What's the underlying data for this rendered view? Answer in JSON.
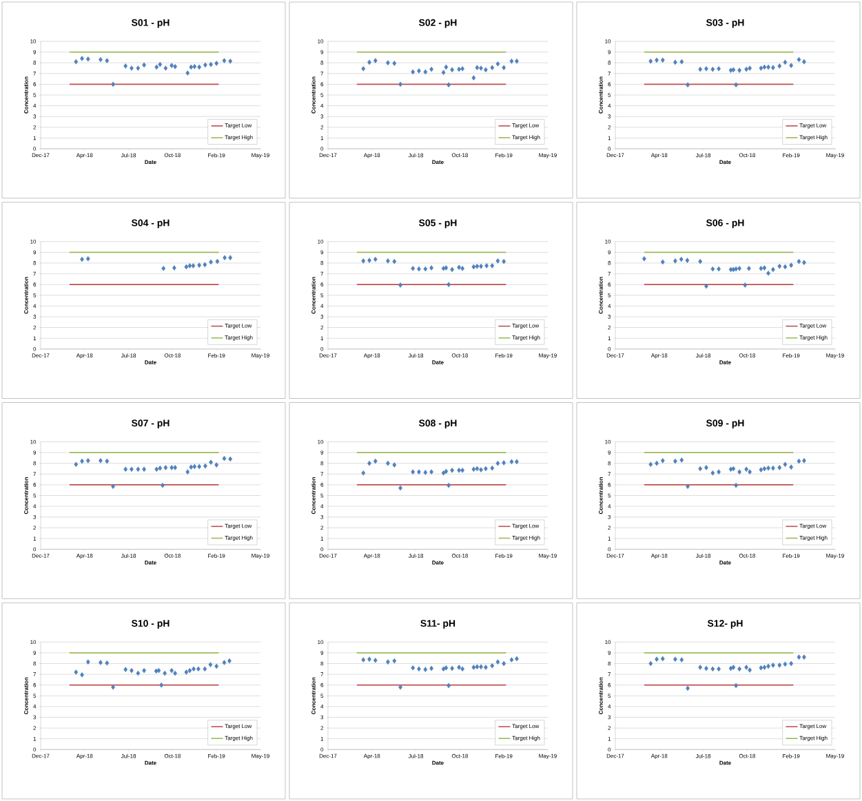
{
  "chart_data": [
    {
      "type": "scatter",
      "title": "S01 - pH",
      "xlabel": "Date",
      "ylabel": "Concentration",
      "grid": "y",
      "legend": "bottom right",
      "xlim": [
        "2017-12-20",
        "2019-05-14"
      ],
      "xticks": [
        {
          "value": "2017-12-20",
          "label": "Dec-17"
        },
        {
          "value": "2018-04-01",
          "label": "Apr-18"
        },
        {
          "value": "2018-07-12",
          "label": "Jul-18"
        },
        {
          "value": "2018-10-22",
          "label": "Oct-18"
        },
        {
          "value": "2019-02-01",
          "label": "Feb-19"
        },
        {
          "value": "2019-05-14",
          "label": "May-19"
        }
      ],
      "ylim": [
        0,
        10
      ],
      "yticks": [
        0,
        1,
        2,
        3,
        4,
        5,
        6,
        7,
        8,
        9,
        10
      ],
      "series": [
        {
          "marker": "diamond",
          "color": "#4f81bd",
          "x": [
            "2018-03-12",
            "2018-03-26",
            "2018-04-09",
            "2018-05-08",
            "2018-05-23",
            "2018-06-06",
            "2018-07-05",
            "2018-07-19",
            "2018-08-03",
            "2018-08-17",
            "2018-09-15",
            "2018-09-23",
            "2018-10-06",
            "2018-10-20",
            "2018-10-28",
            "2018-11-26",
            "2018-12-04",
            "2018-12-12",
            "2018-12-23",
            "2019-01-06",
            "2019-01-19",
            "2019-02-01",
            "2019-02-19",
            "2019-03-05"
          ],
          "values": [
            8.1,
            8.4,
            8.35,
            8.3,
            8.2,
            6.0,
            7.7,
            7.5,
            7.5,
            7.8,
            7.6,
            7.85,
            7.5,
            7.75,
            7.65,
            7.05,
            7.6,
            7.65,
            7.6,
            7.8,
            7.85,
            7.95,
            8.2,
            8.15
          ]
        },
        {
          "name": "Target Low",
          "type": "line",
          "color": "#c0504d",
          "x": [
            "2018-02-25",
            "2019-02-06"
          ],
          "values": [
            6,
            6
          ]
        },
        {
          "name": "Target High",
          "type": "line",
          "color": "#9bbb59",
          "x": [
            "2018-02-25",
            "2019-02-06"
          ],
          "values": [
            9,
            9
          ]
        }
      ]
    },
    {
      "type": "scatter",
      "title": "S02 - pH",
      "xlabel": "Date",
      "ylabel": "Concentration",
      "grid": "y",
      "legend": "bottom right",
      "xlim": [
        "2017-12-20",
        "2019-05-14"
      ],
      "xticks": [
        {
          "value": "2017-12-20",
          "label": "Dec-17"
        },
        {
          "value": "2018-04-01",
          "label": "Apr-18"
        },
        {
          "value": "2018-07-12",
          "label": "Jul-18"
        },
        {
          "value": "2018-10-22",
          "label": "Oct-18"
        },
        {
          "value": "2019-02-01",
          "label": "Feb-19"
        },
        {
          "value": "2019-05-14",
          "label": "May-19"
        }
      ],
      "ylim": [
        0,
        10
      ],
      "yticks": [
        0,
        1,
        2,
        3,
        4,
        5,
        6,
        7,
        8,
        9,
        10
      ],
      "series": [
        {
          "marker": "diamond",
          "color": "#4f81bd",
          "x": [
            "2018-03-12",
            "2018-03-26",
            "2018-04-09",
            "2018-05-08",
            "2018-05-23",
            "2018-06-06",
            "2018-07-05",
            "2018-07-19",
            "2018-08-03",
            "2018-08-17",
            "2018-09-14",
            "2018-09-20",
            "2018-09-26",
            "2018-10-04",
            "2018-10-20",
            "2018-10-28",
            "2018-11-23",
            "2018-12-01",
            "2018-12-10",
            "2018-12-21",
            "2019-01-05",
            "2019-01-18",
            "2019-02-01",
            "2019-02-19",
            "2019-03-03"
          ],
          "values": [
            7.45,
            8.05,
            8.2,
            8.0,
            7.95,
            6.0,
            7.15,
            7.25,
            7.15,
            7.4,
            7.1,
            7.6,
            5.95,
            7.35,
            7.4,
            7.45,
            6.6,
            7.55,
            7.5,
            7.35,
            7.55,
            7.9,
            7.55,
            8.15,
            8.15
          ]
        },
        {
          "name": "Target Low",
          "type": "line",
          "color": "#c0504d",
          "x": [
            "2018-02-25",
            "2019-02-06"
          ],
          "values": [
            6,
            6
          ]
        },
        {
          "name": "Target High",
          "type": "line",
          "color": "#9bbb59",
          "x": [
            "2018-02-25",
            "2019-02-06"
          ],
          "values": [
            9,
            9
          ]
        }
      ]
    },
    {
      "type": "scatter",
      "title": "S03 - pH",
      "xlabel": "Date",
      "ylabel": "Concentration",
      "grid": "y",
      "legend": "bottom right",
      "xlim": [
        "2017-12-20",
        "2019-05-14"
      ],
      "xticks": [
        {
          "value": "2017-12-20",
          "label": "Dec-17"
        },
        {
          "value": "2018-04-01",
          "label": "Apr-18"
        },
        {
          "value": "2018-07-12",
          "label": "Jul-18"
        },
        {
          "value": "2018-10-22",
          "label": "Oct-18"
        },
        {
          "value": "2019-02-01",
          "label": "Feb-19"
        },
        {
          "value": "2019-05-14",
          "label": "May-19"
        }
      ],
      "ylim": [
        0,
        10
      ],
      "yticks": [
        0,
        1,
        2,
        3,
        4,
        5,
        6,
        7,
        8,
        9,
        10
      ],
      "series": [
        {
          "marker": "diamond",
          "color": "#4f81bd",
          "x": [
            "2018-03-12",
            "2018-03-26",
            "2018-04-09",
            "2018-05-08",
            "2018-05-23",
            "2018-06-06",
            "2018-07-05",
            "2018-07-19",
            "2018-08-03",
            "2018-08-17",
            "2018-09-14",
            "2018-09-20",
            "2018-09-26",
            "2018-10-04",
            "2018-10-20",
            "2018-10-28",
            "2018-11-23",
            "2018-12-01",
            "2018-12-10",
            "2018-12-21",
            "2019-01-05",
            "2019-01-18",
            "2019-02-01",
            "2019-02-19",
            "2019-03-03"
          ],
          "values": [
            8.15,
            8.25,
            8.25,
            8.05,
            8.1,
            5.95,
            7.4,
            7.45,
            7.4,
            7.45,
            7.3,
            7.35,
            5.95,
            7.3,
            7.4,
            7.5,
            7.5,
            7.6,
            7.6,
            7.55,
            7.7,
            8.05,
            7.75,
            8.3,
            8.1
          ]
        },
        {
          "name": "Target Low",
          "type": "line",
          "color": "#c0504d",
          "x": [
            "2018-02-25",
            "2019-02-06"
          ],
          "values": [
            6,
            6
          ]
        },
        {
          "name": "Target High",
          "type": "line",
          "color": "#9bbb59",
          "x": [
            "2018-02-25",
            "2019-02-06"
          ],
          "values": [
            9,
            9
          ]
        }
      ]
    },
    {
      "type": "scatter",
      "title": "S04 - pH",
      "xlabel": "Date",
      "ylabel": "Concentration",
      "grid": "y",
      "legend": "bottom right",
      "xlim": [
        "2017-12-20",
        "2019-05-14"
      ],
      "xticks": [
        {
          "value": "2017-12-20",
          "label": "Dec-17"
        },
        {
          "value": "2018-04-01",
          "label": "Apr-18"
        },
        {
          "value": "2018-07-12",
          "label": "Jul-18"
        },
        {
          "value": "2018-10-22",
          "label": "Oct-18"
        },
        {
          "value": "2019-02-01",
          "label": "Feb-19"
        },
        {
          "value": "2019-05-14",
          "label": "May-19"
        }
      ],
      "ylim": [
        0,
        10
      ],
      "yticks": [
        0,
        1,
        2,
        3,
        4,
        5,
        6,
        7,
        8,
        9,
        10
      ],
      "series": [
        {
          "marker": "diamond",
          "color": "#4f81bd",
          "x": [
            "2018-03-26",
            "2018-04-09",
            "2018-10-01",
            "2018-10-26",
            "2018-11-23",
            "2018-12-01",
            "2018-12-09",
            "2018-12-23",
            "2019-01-05",
            "2019-01-19",
            "2019-02-03",
            "2019-02-20",
            "2019-03-05"
          ],
          "values": [
            8.35,
            8.4,
            7.5,
            7.55,
            7.65,
            7.75,
            7.75,
            7.8,
            7.85,
            8.1,
            8.15,
            8.5,
            8.5
          ]
        },
        {
          "name": "Target Low",
          "type": "line",
          "color": "#c0504d",
          "x": [
            "2018-02-25",
            "2019-02-06"
          ],
          "values": [
            6,
            6
          ]
        },
        {
          "name": "Target High",
          "type": "line",
          "color": "#9bbb59",
          "x": [
            "2018-02-25",
            "2019-02-06"
          ],
          "values": [
            9,
            9
          ]
        }
      ]
    },
    {
      "type": "scatter",
      "title": "S05 - pH",
      "xlabel": "Date",
      "ylabel": "Concentration",
      "grid": "y",
      "legend": "bottom right",
      "xlim": [
        "2017-12-20",
        "2019-05-14"
      ],
      "xticks": [
        {
          "value": "2017-12-20",
          "label": "Dec-17"
        },
        {
          "value": "2018-04-01",
          "label": "Apr-18"
        },
        {
          "value": "2018-07-12",
          "label": "Jul-18"
        },
        {
          "value": "2018-10-22",
          "label": "Oct-18"
        },
        {
          "value": "2019-02-01",
          "label": "Feb-19"
        },
        {
          "value": "2019-05-14",
          "label": "May-19"
        }
      ],
      "ylim": [
        0,
        10
      ],
      "yticks": [
        0,
        1,
        2,
        3,
        4,
        5,
        6,
        7,
        8,
        9,
        10
      ],
      "series": [
        {
          "marker": "diamond",
          "color": "#4f81bd",
          "x": [
            "2018-03-12",
            "2018-03-26",
            "2018-04-09",
            "2018-05-08",
            "2018-05-23",
            "2018-06-06",
            "2018-07-05",
            "2018-07-19",
            "2018-08-03",
            "2018-08-17",
            "2018-09-14",
            "2018-09-20",
            "2018-09-26",
            "2018-10-04",
            "2018-10-20",
            "2018-10-28",
            "2018-11-23",
            "2018-12-01",
            "2018-12-10",
            "2018-12-23",
            "2019-01-05",
            "2019-01-18",
            "2019-02-01"
          ],
          "values": [
            8.2,
            8.25,
            8.35,
            8.2,
            8.15,
            5.95,
            7.5,
            7.45,
            7.45,
            7.55,
            7.5,
            7.55,
            6.0,
            7.4,
            7.6,
            7.5,
            7.65,
            7.7,
            7.7,
            7.75,
            7.75,
            8.2,
            8.15
          ]
        },
        {
          "name": "Target Low",
          "type": "line",
          "color": "#c0504d",
          "x": [
            "2018-02-25",
            "2019-02-06"
          ],
          "values": [
            6,
            6
          ]
        },
        {
          "name": "Target High",
          "type": "line",
          "color": "#9bbb59",
          "x": [
            "2018-02-25",
            "2019-02-06"
          ],
          "values": [
            9,
            9
          ]
        }
      ]
    },
    {
      "type": "scatter",
      "title": "S06 - pH",
      "xlabel": "Date",
      "ylabel": "Concentration",
      "grid": "y",
      "legend": "bottom right",
      "xlim": [
        "2017-12-20",
        "2019-05-14"
      ],
      "xticks": [
        {
          "value": "2017-12-20",
          "label": "Dec-17"
        },
        {
          "value": "2018-04-01",
          "label": "Apr-18"
        },
        {
          "value": "2018-07-12",
          "label": "Jul-18"
        },
        {
          "value": "2018-10-22",
          "label": "Oct-18"
        },
        {
          "value": "2019-02-01",
          "label": "Feb-19"
        },
        {
          "value": "2019-05-14",
          "label": "May-19"
        }
      ],
      "ylim": [
        0,
        10
      ],
      "yticks": [
        0,
        1,
        2,
        3,
        4,
        5,
        6,
        7,
        8,
        9,
        10
      ],
      "series": [
        {
          "marker": "diamond",
          "color": "#4f81bd",
          "x": [
            "2018-02-25",
            "2018-04-09",
            "2018-05-08",
            "2018-05-22",
            "2018-06-05",
            "2018-07-05",
            "2018-07-19",
            "2018-08-03",
            "2018-08-17",
            "2018-09-14",
            "2018-09-20",
            "2018-09-26",
            "2018-10-04",
            "2018-10-17",
            "2018-10-26",
            "2018-11-23",
            "2018-12-01",
            "2018-12-10",
            "2018-12-21",
            "2019-01-05",
            "2019-01-18",
            "2019-02-01",
            "2019-02-19",
            "2019-03-03"
          ],
          "values": [
            8.4,
            8.1,
            8.2,
            8.35,
            8.25,
            8.15,
            5.85,
            7.45,
            7.45,
            7.4,
            7.4,
            7.45,
            7.5,
            5.95,
            7.5,
            7.5,
            7.55,
            7.05,
            7.4,
            7.7,
            7.65,
            7.8,
            8.15,
            8.05
          ]
        },
        {
          "name": "Target Low",
          "type": "line",
          "color": "#c0504d",
          "x": [
            "2018-02-25",
            "2019-02-06"
          ],
          "values": [
            6,
            6
          ]
        },
        {
          "name": "Target High",
          "type": "line",
          "color": "#9bbb59",
          "x": [
            "2018-02-25",
            "2019-02-06"
          ],
          "values": [
            9,
            9
          ]
        }
      ]
    },
    {
      "type": "scatter",
      "title": "S07 - pH",
      "xlabel": "Date",
      "ylabel": "Concentration",
      "grid": "y",
      "legend": "bottom right",
      "xlim": [
        "2017-12-20",
        "2019-05-14"
      ],
      "xticks": [
        {
          "value": "2017-12-20",
          "label": "Dec-17"
        },
        {
          "value": "2018-04-01",
          "label": "Apr-18"
        },
        {
          "value": "2018-07-12",
          "label": "Jul-18"
        },
        {
          "value": "2018-10-22",
          "label": "Oct-18"
        },
        {
          "value": "2019-02-01",
          "label": "Feb-19"
        },
        {
          "value": "2019-05-14",
          "label": "May-19"
        }
      ],
      "ylim": [
        0,
        10
      ],
      "yticks": [
        0,
        1,
        2,
        3,
        4,
        5,
        6,
        7,
        8,
        9,
        10
      ],
      "series": [
        {
          "marker": "diamond",
          "color": "#4f81bd",
          "x": [
            "2018-03-12",
            "2018-03-26",
            "2018-04-09",
            "2018-05-08",
            "2018-05-23",
            "2018-06-06",
            "2018-07-05",
            "2018-07-19",
            "2018-08-03",
            "2018-08-17",
            "2018-09-15",
            "2018-09-23",
            "2018-09-29",
            "2018-10-06",
            "2018-10-20",
            "2018-10-28",
            "2018-11-26",
            "2018-12-04",
            "2018-12-12",
            "2018-12-23",
            "2019-01-06",
            "2019-01-19",
            "2019-02-01",
            "2019-02-19",
            "2019-03-05"
          ],
          "values": [
            7.9,
            8.2,
            8.25,
            8.25,
            8.2,
            5.85,
            7.45,
            7.45,
            7.45,
            7.45,
            7.45,
            7.55,
            5.95,
            7.6,
            7.6,
            7.6,
            7.2,
            7.65,
            7.7,
            7.7,
            7.75,
            8.1,
            7.85,
            8.45,
            8.4
          ]
        },
        {
          "name": "Target Low",
          "type": "line",
          "color": "#c0504d",
          "x": [
            "2018-02-25",
            "2019-02-06"
          ],
          "values": [
            6,
            6
          ]
        },
        {
          "name": "Target High",
          "type": "line",
          "color": "#9bbb59",
          "x": [
            "2018-02-25",
            "2019-02-06"
          ],
          "values": [
            9,
            9
          ]
        }
      ]
    },
    {
      "type": "scatter",
      "title": "S08 - pH",
      "xlabel": "Date",
      "ylabel": "Concentration",
      "grid": "y",
      "legend": "bottom right",
      "xlim": [
        "2017-12-20",
        "2019-05-14"
      ],
      "xticks": [
        {
          "value": "2017-12-20",
          "label": "Dec-17"
        },
        {
          "value": "2018-04-01",
          "label": "Apr-18"
        },
        {
          "value": "2018-07-12",
          "label": "Jul-18"
        },
        {
          "value": "2018-10-22",
          "label": "Oct-18"
        },
        {
          "value": "2019-02-01",
          "label": "Feb-19"
        },
        {
          "value": "2019-05-14",
          "label": "May-19"
        }
      ],
      "ylim": [
        0,
        10
      ],
      "yticks": [
        0,
        1,
        2,
        3,
        4,
        5,
        6,
        7,
        8,
        9,
        10
      ],
      "series": [
        {
          "color": "#4f81bd",
          "x": [
            "2018-03-12",
            "2018-03-26",
            "2018-04-09",
            "2018-05-08",
            "2018-05-23",
            "2018-06-06",
            "2018-07-05",
            "2018-07-19",
            "2018-08-03",
            "2018-08-17",
            "2018-09-14",
            "2018-09-20",
            "2018-09-26",
            "2018-10-04",
            "2018-10-20",
            "2018-10-28",
            "2018-11-23",
            "2018-12-01",
            "2018-12-10",
            "2018-12-21",
            "2019-01-05",
            "2019-01-18",
            "2019-02-01",
            "2019-02-19",
            "2019-03-03"
          ],
          "marker": "diamond",
          "values": [
            7.1,
            8.0,
            8.2,
            8.0,
            7.85,
            5.7,
            7.2,
            7.2,
            7.15,
            7.2,
            7.1,
            7.25,
            5.95,
            7.35,
            7.35,
            7.35,
            7.45,
            7.5,
            7.4,
            7.5,
            7.55,
            8.0,
            8.05,
            8.15,
            8.15
          ]
        },
        {
          "name": "Target Low",
          "type": "line",
          "color": "#c0504d",
          "x": [
            "2018-02-25",
            "2019-02-06"
          ],
          "values": [
            6,
            6
          ]
        },
        {
          "name": "Target High",
          "type": "line",
          "color": "#9bbb59",
          "x": [
            "2018-02-25",
            "2019-02-06"
          ],
          "values": [
            9,
            9
          ]
        }
      ]
    },
    {
      "type": "scatter",
      "title": "S09 - pH",
      "xlabel": "Date",
      "ylabel": "Concentration",
      "grid": "y",
      "legend": "bottom right",
      "xlim": [
        "2017-12-20",
        "2019-05-14"
      ],
      "xticks": [
        {
          "value": "2017-12-20",
          "label": "Dec-17"
        },
        {
          "value": "2018-04-01",
          "label": "Apr-18"
        },
        {
          "value": "2018-07-12",
          "label": "Jul-18"
        },
        {
          "value": "2018-10-22",
          "label": "Oct-18"
        },
        {
          "value": "2019-02-01",
          "label": "Feb-19"
        },
        {
          "value": "2019-05-14",
          "label": "May-19"
        }
      ],
      "ylim": [
        0,
        10
      ],
      "yticks": [
        0,
        1,
        2,
        3,
        4,
        5,
        6,
        7,
        8,
        9,
        10
      ],
      "series": [
        {
          "color": "#4f81bd",
          "x": [
            "2018-03-12",
            "2018-03-26",
            "2018-04-09",
            "2018-05-08",
            "2018-05-23",
            "2018-06-06",
            "2018-07-05",
            "2018-07-19",
            "2018-08-03",
            "2018-08-17",
            "2018-09-14",
            "2018-09-20",
            "2018-09-26",
            "2018-10-04",
            "2018-10-20",
            "2018-10-28",
            "2018-11-23",
            "2018-12-01",
            "2018-12-10",
            "2018-12-21",
            "2019-01-05",
            "2019-01-18",
            "2019-02-01",
            "2019-02-19",
            "2019-03-03"
          ],
          "marker": "diamond",
          "values": [
            7.9,
            8.0,
            8.25,
            8.2,
            8.3,
            5.85,
            7.5,
            7.6,
            7.1,
            7.2,
            7.45,
            7.5,
            5.95,
            7.2,
            7.45,
            7.2,
            7.4,
            7.5,
            7.55,
            7.55,
            7.6,
            7.9,
            7.65,
            8.2,
            8.25
          ]
        },
        {
          "name": "Target Low",
          "type": "line",
          "color": "#c0504d",
          "x": [
            "2018-02-25",
            "2019-02-06"
          ],
          "values": [
            6,
            6
          ]
        },
        {
          "name": "Target High",
          "type": "line",
          "color": "#9bbb59",
          "x": [
            "2018-02-25",
            "2019-02-06"
          ],
          "values": [
            9,
            9
          ]
        }
      ]
    },
    {
      "type": "scatter",
      "title": "S10 - pH",
      "xlabel": "Date",
      "ylabel": "Concentration",
      "grid": "y",
      "legend": "bottom right",
      "xlim": [
        "2017-12-20",
        "2019-05-14"
      ],
      "xticks": [
        {
          "value": "2017-12-20",
          "label": "Dec-17"
        },
        {
          "value": "2018-04-01",
          "label": "Apr-18"
        },
        {
          "value": "2018-07-12",
          "label": "Jul-18"
        },
        {
          "value": "2018-10-22",
          "label": "Oct-18"
        },
        {
          "value": "2019-02-01",
          "label": "Feb-19"
        },
        {
          "value": "2019-05-14",
          "label": "May-19"
        }
      ],
      "ylim": [
        0,
        10
      ],
      "yticks": [
        0,
        1,
        2,
        3,
        4,
        5,
        6,
        7,
        8,
        9,
        10
      ],
      "series": [
        {
          "color": "#4f81bd",
          "x": [
            "2018-03-12",
            "2018-03-26",
            "2018-04-09",
            "2018-05-08",
            "2018-05-23",
            "2018-06-06",
            "2018-07-05",
            "2018-07-19",
            "2018-08-03",
            "2018-08-17",
            "2018-09-14",
            "2018-09-20",
            "2018-09-26",
            "2018-10-04",
            "2018-10-20",
            "2018-10-28",
            "2018-11-23",
            "2018-12-01",
            "2018-12-10",
            "2018-12-21",
            "2019-01-05",
            "2019-01-18",
            "2019-02-01",
            "2019-02-19",
            "2019-03-03"
          ],
          "marker": "diamond",
          "values": [
            7.2,
            6.95,
            8.15,
            8.1,
            8.05,
            5.8,
            7.45,
            7.35,
            7.1,
            7.35,
            7.3,
            7.35,
            6.0,
            7.1,
            7.35,
            7.1,
            7.2,
            7.35,
            7.5,
            7.5,
            7.5,
            7.9,
            7.75,
            8.1,
            8.25
          ]
        },
        {
          "name": "Target Low",
          "type": "line",
          "color": "#c0504d",
          "x": [
            "2018-02-25",
            "2019-02-06"
          ],
          "values": [
            6,
            6
          ]
        },
        {
          "name": "Target High",
          "type": "line",
          "color": "#9bbb59",
          "x": [
            "2018-02-25",
            "2019-02-06"
          ],
          "values": [
            9,
            9
          ]
        }
      ]
    },
    {
      "type": "scatter",
      "title": "S11- pH",
      "xlabel": "Date",
      "ylabel": "Concentration",
      "grid": "y",
      "legend": "bottom right",
      "xlim": [
        "2017-12-20",
        "2019-05-14"
      ],
      "xticks": [
        {
          "value": "2017-12-20",
          "label": "Dec-17"
        },
        {
          "value": "2018-04-01",
          "label": "Apr-18"
        },
        {
          "value": "2018-07-12",
          "label": "Jul-18"
        },
        {
          "value": "2018-10-22",
          "label": "Oct-18"
        },
        {
          "value": "2019-02-01",
          "label": "Feb-19"
        },
        {
          "value": "2019-05-14",
          "label": "May-19"
        }
      ],
      "ylim": [
        0,
        10
      ],
      "yticks": [
        0,
        1,
        2,
        3,
        4,
        5,
        6,
        7,
        8,
        9,
        10
      ],
      "series": [
        {
          "color": "#4f81bd",
          "x": [
            "2018-03-12",
            "2018-03-26",
            "2018-04-09",
            "2018-05-08",
            "2018-05-23",
            "2018-06-06",
            "2018-07-05",
            "2018-07-19",
            "2018-08-03",
            "2018-08-17",
            "2018-09-14",
            "2018-09-20",
            "2018-09-26",
            "2018-10-04",
            "2018-10-20",
            "2018-10-28",
            "2018-11-23",
            "2018-12-01",
            "2018-12-10",
            "2018-12-21",
            "2019-01-05",
            "2019-01-18",
            "2019-02-01",
            "2019-02-19",
            "2019-03-03"
          ],
          "marker": "diamond",
          "values": [
            8.35,
            8.4,
            8.3,
            8.15,
            8.25,
            5.8,
            7.6,
            7.5,
            7.45,
            7.55,
            7.5,
            7.6,
            5.95,
            7.55,
            7.65,
            7.5,
            7.65,
            7.7,
            7.7,
            7.65,
            7.8,
            8.15,
            8.0,
            8.35,
            8.45
          ]
        },
        {
          "name": "Target Low",
          "type": "line",
          "color": "#c0504d",
          "x": [
            "2018-02-25",
            "2019-02-06"
          ],
          "values": [
            6,
            6
          ]
        },
        {
          "name": "Target High",
          "type": "line",
          "color": "#9bbb59",
          "x": [
            "2018-02-25",
            "2019-02-06"
          ],
          "values": [
            9,
            9
          ]
        }
      ]
    },
    {
      "type": "scatter",
      "title": "S12- pH",
      "xlabel": "Date",
      "ylabel": "Concentration",
      "grid": "y",
      "legend": "bottom right",
      "xlim": [
        "2017-12-20",
        "2019-05-14"
      ],
      "xticks": [
        {
          "value": "2017-12-20",
          "label": "Dec-17"
        },
        {
          "value": "2018-04-01",
          "label": "Apr-18"
        },
        {
          "value": "2018-07-12",
          "label": "Jul-18"
        },
        {
          "value": "2018-10-22",
          "label": "Oct-18"
        },
        {
          "value": "2019-02-01",
          "label": "Feb-19"
        },
        {
          "value": "2019-05-14",
          "label": "May-19"
        }
      ],
      "ylim": [
        0,
        10
      ],
      "yticks": [
        0,
        1,
        2,
        3,
        4,
        5,
        6,
        7,
        8,
        9,
        10
      ],
      "series": [
        {
          "color": "#4f81bd",
          "x": [
            "2018-03-12",
            "2018-03-26",
            "2018-04-09",
            "2018-05-08",
            "2018-05-23",
            "2018-06-06",
            "2018-07-05",
            "2018-07-19",
            "2018-08-03",
            "2018-08-17",
            "2018-09-14",
            "2018-09-20",
            "2018-09-26",
            "2018-10-04",
            "2018-10-20",
            "2018-10-28",
            "2018-11-23",
            "2018-12-01",
            "2018-12-10",
            "2018-12-21",
            "2019-01-05",
            "2019-01-18",
            "2019-02-01",
            "2019-02-19",
            "2019-03-03"
          ],
          "marker": "diamond",
          "values": [
            8.0,
            8.4,
            8.45,
            8.4,
            8.35,
            5.7,
            7.65,
            7.55,
            7.5,
            7.5,
            7.55,
            7.65,
            5.95,
            7.5,
            7.65,
            7.4,
            7.6,
            7.65,
            7.75,
            7.85,
            7.85,
            7.95,
            8.0,
            8.6,
            8.6
          ]
        },
        {
          "name": "Target Low",
          "type": "line",
          "color": "#c0504d",
          "x": [
            "2018-02-25",
            "2019-02-06"
          ],
          "values": [
            6,
            6
          ]
        },
        {
          "name": "Target High",
          "type": "line",
          "color": "#9bbb59",
          "x": [
            "2018-02-25",
            "2019-02-06"
          ],
          "values": [
            9,
            9
          ]
        }
      ]
    }
  ]
}
